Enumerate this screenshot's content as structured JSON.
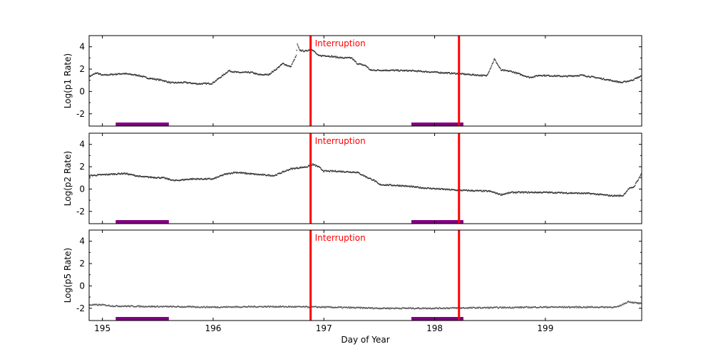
{
  "chart_data": [
    {
      "type": "scatter",
      "ylabel": "Log(p1 Rate)",
      "xlim": [
        194.88,
        199.87
      ],
      "ylim": [
        -3.1,
        5
      ],
      "yticks": [
        -2,
        0,
        2,
        4
      ],
      "series": [
        {
          "color": "#333333",
          "points": [
            [
              194.88,
              1.34
            ],
            [
              194.95,
              1.66
            ],
            [
              195.0,
              1.45
            ],
            [
              195.19,
              1.6
            ],
            [
              195.32,
              1.45
            ],
            [
              195.41,
              1.2
            ],
            [
              195.54,
              1.0
            ],
            [
              195.62,
              0.77
            ],
            [
              195.75,
              0.8
            ],
            [
              195.86,
              0.68
            ],
            [
              195.99,
              0.72
            ],
            [
              196.09,
              1.45
            ],
            [
              196.14,
              1.85
            ],
            [
              196.22,
              1.7
            ],
            [
              196.35,
              1.7
            ],
            [
              196.41,
              1.5
            ],
            [
              196.5,
              1.5
            ],
            [
              196.57,
              2.0
            ],
            [
              196.63,
              2.5
            ],
            [
              196.7,
              2.2
            ],
            [
              196.75,
              3.2
            ],
            [
              196.76,
              4.2
            ],
            [
              196.78,
              3.7
            ],
            [
              196.83,
              3.6
            ],
            [
              196.89,
              3.8
            ],
            [
              196.95,
              3.2
            ],
            [
              197.02,
              3.2
            ],
            [
              197.17,
              3.0
            ],
            [
              197.25,
              3.0
            ],
            [
              197.3,
              2.5
            ],
            [
              197.38,
              2.3
            ],
            [
              197.42,
              1.9
            ],
            [
              197.55,
              1.9
            ],
            [
              197.79,
              1.85
            ],
            [
              198.2,
              1.6
            ],
            [
              198.47,
              1.4
            ],
            [
              198.5,
              2.0
            ],
            [
              198.54,
              2.9
            ],
            [
              198.6,
              1.9
            ],
            [
              198.69,
              1.8
            ],
            [
              198.86,
              1.25
            ],
            [
              198.95,
              1.45
            ],
            [
              199.18,
              1.35
            ],
            [
              199.33,
              1.45
            ],
            [
              199.48,
              1.2
            ],
            [
              199.69,
              0.8
            ],
            [
              199.78,
              1.0
            ],
            [
              199.87,
              1.4
            ]
          ]
        }
      ],
      "annotations": [
        {
          "text": "Interruption",
          "x": 196.88,
          "color": "#ff0000"
        }
      ]
    },
    {
      "type": "scatter",
      "ylabel": "Log(p2 Rate)",
      "xlim": [
        194.88,
        199.87
      ],
      "ylim": [
        -3.1,
        5
      ],
      "yticks": [
        -2,
        0,
        2,
        4
      ],
      "series": [
        {
          "color": "#333333",
          "points": [
            [
              194.88,
              1.2
            ],
            [
              195.2,
              1.4
            ],
            [
              195.35,
              1.1
            ],
            [
              195.55,
              1.0
            ],
            [
              195.65,
              0.75
            ],
            [
              195.8,
              0.9
            ],
            [
              196.0,
              0.9
            ],
            [
              196.1,
              1.3
            ],
            [
              196.2,
              1.5
            ],
            [
              196.4,
              1.3
            ],
            [
              196.55,
              1.2
            ],
            [
              196.7,
              1.8
            ],
            [
              196.85,
              2.0
            ],
            [
              196.9,
              2.2
            ],
            [
              196.95,
              2.0
            ],
            [
              197.0,
              1.6
            ],
            [
              197.1,
              1.6
            ],
            [
              197.3,
              1.5
            ],
            [
              197.4,
              1.0
            ],
            [
              197.45,
              0.8
            ],
            [
              197.5,
              0.4
            ],
            [
              197.7,
              0.3
            ],
            [
              197.9,
              0.1
            ],
            [
              198.2,
              -0.1
            ],
            [
              198.5,
              -0.2
            ],
            [
              198.6,
              -0.5
            ],
            [
              198.7,
              -0.3
            ],
            [
              199.0,
              -0.3
            ],
            [
              199.4,
              -0.4
            ],
            [
              199.6,
              -0.6
            ],
            [
              199.7,
              -0.6
            ],
            [
              199.75,
              0.0
            ],
            [
              199.8,
              0.2
            ],
            [
              199.87,
              1.4
            ]
          ]
        }
      ],
      "annotations": [
        {
          "text": "Interruption",
          "x": 196.88,
          "color": "#ff0000"
        }
      ]
    },
    {
      "type": "scatter",
      "ylabel": "Log(p5 Rate)",
      "xlabel": "Day of Year",
      "xlim": [
        194.88,
        199.87
      ],
      "ylim": [
        -3.1,
        5
      ],
      "yticks": [
        -2,
        0,
        2,
        4
      ],
      "xticks": [
        195,
        196,
        197,
        198,
        199
      ],
      "series": [
        {
          "color": "#555555",
          "points": [
            [
              194.88,
              -1.7
            ],
            [
              195.0,
              -1.7
            ],
            [
              195.1,
              -1.8
            ],
            [
              195.5,
              -1.85
            ],
            [
              196.0,
              -1.9
            ],
            [
              196.5,
              -1.85
            ],
            [
              197.0,
              -1.9
            ],
            [
              197.5,
              -2.0
            ],
            [
              198.0,
              -2.0
            ],
            [
              198.5,
              -1.95
            ],
            [
              199.0,
              -1.9
            ],
            [
              199.5,
              -1.9
            ],
            [
              199.65,
              -1.9
            ],
            [
              199.75,
              -1.4
            ],
            [
              199.8,
              -1.5
            ],
            [
              199.87,
              -1.6
            ]
          ]
        }
      ],
      "annotations": [
        {
          "text": "Interruption",
          "x": 196.88,
          "color": "#ff0000"
        }
      ]
    }
  ],
  "interruption_lines": [
    196.88,
    198.22
  ],
  "interruption_color": "#ff0000",
  "interval_bars": [
    [
      195.12,
      195.6
    ],
    [
      197.79,
      198.26
    ]
  ],
  "interval_color": "#800080"
}
